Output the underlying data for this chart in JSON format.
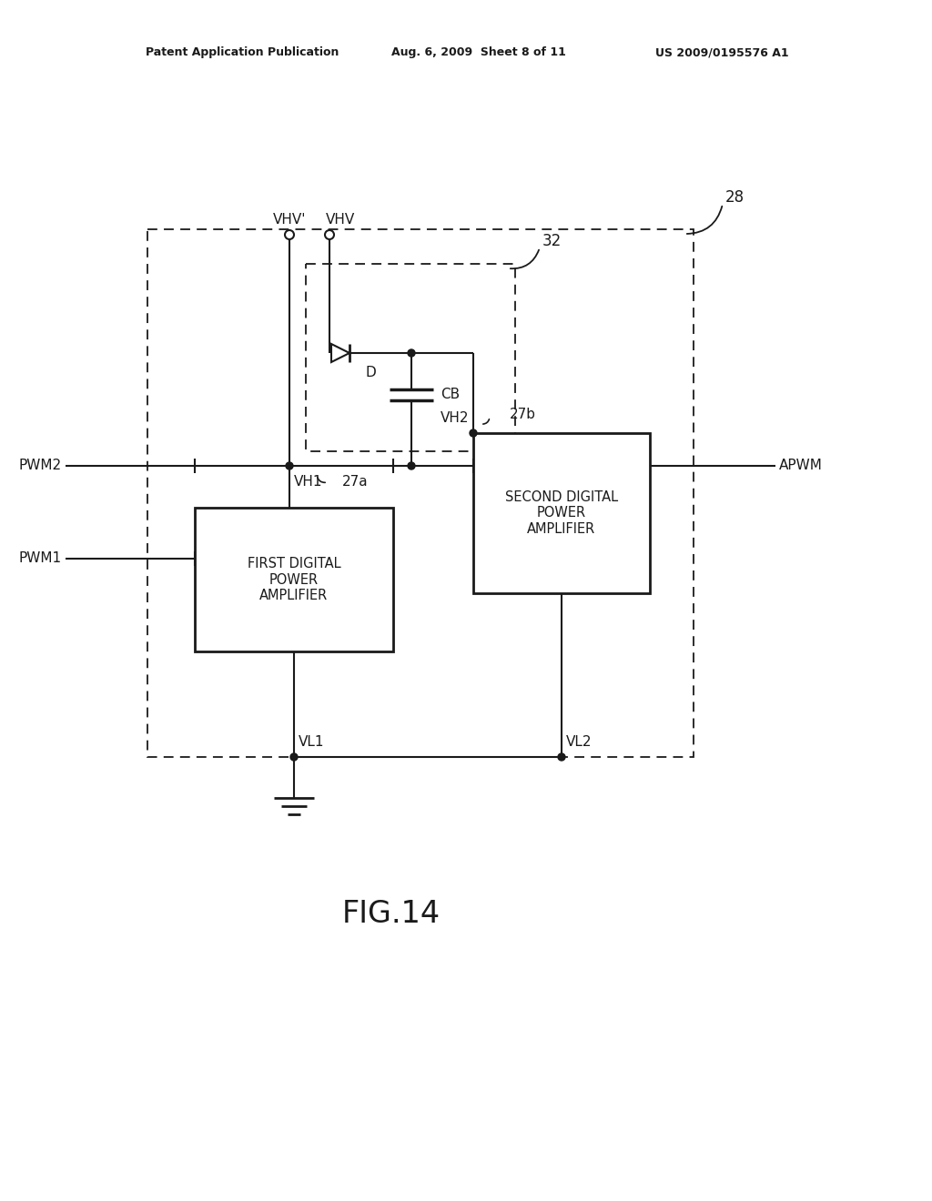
{
  "bg_color": "#ffffff",
  "line_color": "#1a1a1a",
  "header_left": "Patent Application Publication",
  "header_mid": "Aug. 6, 2009  Sheet 8 of 11",
  "header_right": "US 2009/0195576 A1",
  "fig_label": "FIG.14",
  "label_28": "28",
  "label_32": "32",
  "label_27a": "27a",
  "label_27b": "27b",
  "label_VHV_prime": "VHV'",
  "label_VHV": "VHV",
  "label_VH1": "VH1",
  "label_VH2": "VH2",
  "label_VL1": "VL1",
  "label_VL2": "VL2",
  "label_D": "D",
  "label_CB": "CB",
  "label_PWM2": "PWM2",
  "label_PWM1": "PWM1",
  "label_APWM": "APWM",
  "box1_text": "FIRST DIGITAL\nPOWER\nAMPLIFIER",
  "box2_text": "SECOND DIGITAL\nPOWER\nAMPLIFIER"
}
